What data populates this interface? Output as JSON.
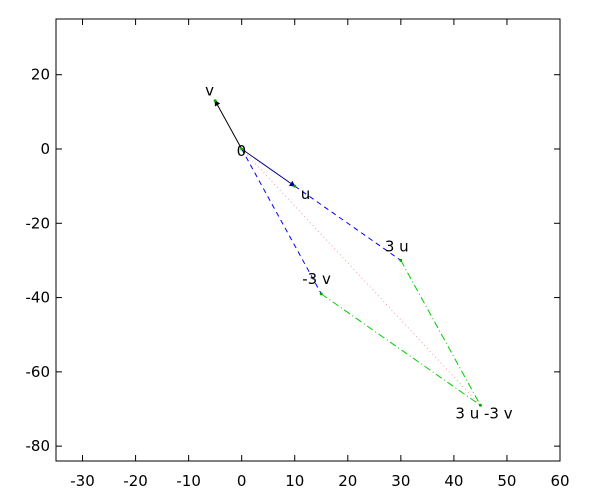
{
  "chart_data": {
    "type": "line",
    "title": "",
    "xlabel": "",
    "ylabel": "",
    "xlim": [
      -35,
      60
    ],
    "ylim": [
      -84,
      35
    ],
    "grid": false,
    "legend": "none",
    "x_ticks": [
      -30,
      -20,
      -10,
      0,
      10,
      20,
      30,
      40,
      50,
      60
    ],
    "y_ticks": [
      20,
      0,
      -20,
      -40,
      -60,
      -80
    ],
    "points": [
      {
        "name": "0",
        "x": 0,
        "y": 0
      },
      {
        "name": "u",
        "x": 10,
        "y": -10
      },
      {
        "name": "v",
        "x": -5,
        "y": 13
      },
      {
        "name": "3 u",
        "x": 30,
        "y": -30
      },
      {
        "name": "-3 v",
        "x": 15,
        "y": -39
      },
      {
        "name": "3 u -3 v",
        "x": 45,
        "y": -69
      }
    ],
    "labels": [
      "0",
      "u",
      "v",
      "3 u",
      "-3 v",
      "3 u -3 v"
    ],
    "segments": [
      {
        "from": [
          0,
          0
        ],
        "to": [
          10,
          -10
        ],
        "style": "solid",
        "color": "#000080",
        "arrow": true
      },
      {
        "from": [
          0,
          0
        ],
        "to": [
          -5,
          13
        ],
        "style": "solid",
        "color": "#000000",
        "arrow": true
      },
      {
        "from": [
          10,
          -10
        ],
        "to": [
          30,
          -30
        ],
        "style": "dashed",
        "color": "#0000ff",
        "arrow": false
      },
      {
        "from": [
          0,
          0
        ],
        "to": [
          15,
          -39
        ],
        "style": "dashed",
        "color": "#0000ff",
        "arrow": false
      },
      {
        "from": [
          30,
          -30
        ],
        "to": [
          45,
          -69
        ],
        "style": "dashdot",
        "color": "#00cc00",
        "arrow": false
      },
      {
        "from": [
          15,
          -39
        ],
        "to": [
          45,
          -69
        ],
        "style": "dashdot",
        "color": "#00cc00",
        "arrow": false
      },
      {
        "from": [
          0,
          0
        ],
        "to": [
          45,
          -69
        ],
        "style": "dotted",
        "color": "#ff9999",
        "arrow": false
      }
    ]
  }
}
